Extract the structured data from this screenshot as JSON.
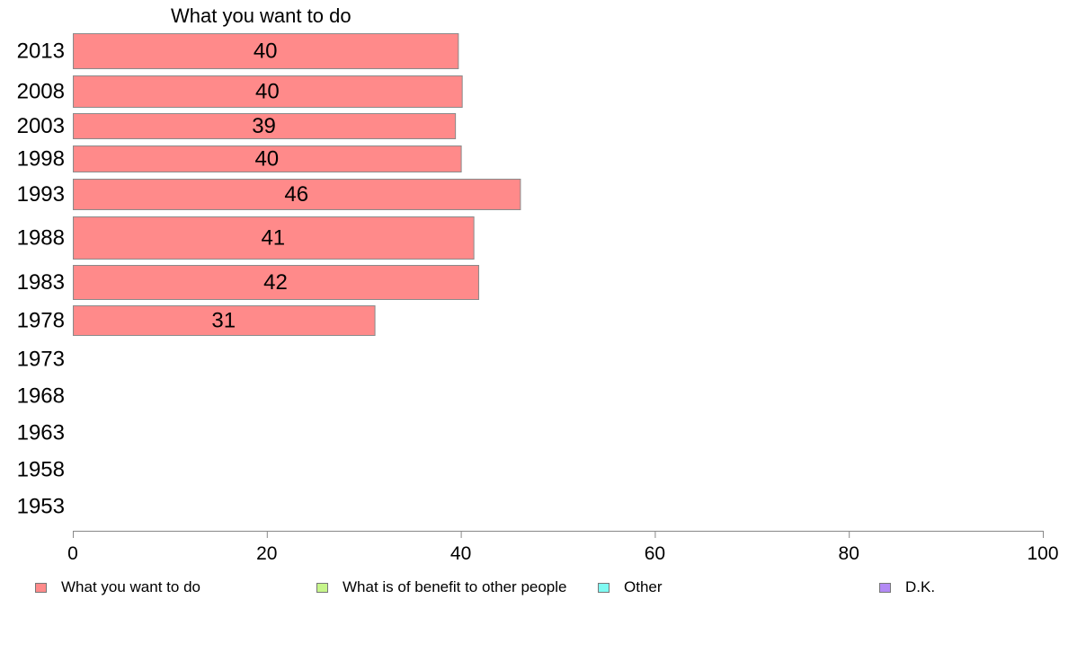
{
  "chart_data": {
    "type": "bar",
    "orientation": "horizontal",
    "title": "What you want to do",
    "categories": [
      "2013",
      "2008",
      "2003",
      "1998",
      "1993",
      "1988",
      "1983",
      "1978",
      "1973",
      "1968",
      "1963",
      "1958",
      "1953"
    ],
    "series": [
      {
        "name": "What you want to do",
        "color": "#ff8a8a",
        "values": [
          40,
          40,
          39,
          40,
          46,
          41,
          42,
          31,
          null,
          null,
          null,
          null,
          null
        ]
      },
      {
        "name": "What is of benefit to other people",
        "color": "#c6f58a",
        "values": [
          null,
          null,
          null,
          null,
          null,
          null,
          null,
          null,
          null,
          null,
          null,
          null,
          null
        ]
      },
      {
        "name": "Other",
        "color": "#7ffaf2",
        "values": [
          null,
          null,
          null,
          null,
          null,
          null,
          null,
          null,
          null,
          null,
          null,
          null,
          null
        ]
      },
      {
        "name": "D.K.",
        "color": "#b38af5",
        "values": [
          null,
          null,
          null,
          null,
          null,
          null,
          null,
          null,
          null,
          null,
          null,
          null,
          null
        ]
      }
    ],
    "bar_extents": [
      39.7,
      40.1,
      39.4,
      40.0,
      46.1,
      41.3,
      41.8,
      31.1
    ],
    "xlim": [
      0,
      100
    ],
    "xticks": [
      0,
      20,
      40,
      60,
      80,
      100
    ],
    "grid": false,
    "legend_position": "bottom"
  }
}
